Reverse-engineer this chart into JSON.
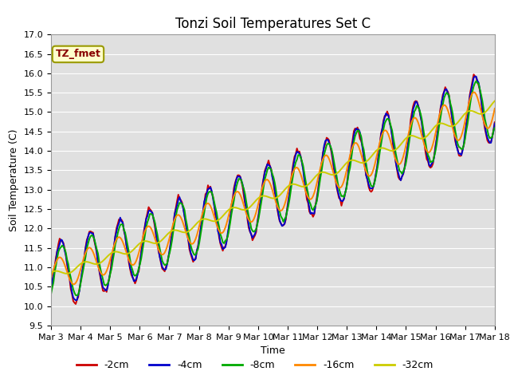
{
  "title": "Tonzi Soil Temperatures Set C",
  "xlabel": "Time",
  "ylabel": "Soil Temperature (C)",
  "ylim": [
    9.5,
    17.0
  ],
  "yticks": [
    9.5,
    10.0,
    10.5,
    11.0,
    11.5,
    12.0,
    12.5,
    13.0,
    13.5,
    14.0,
    14.5,
    15.0,
    15.5,
    16.0,
    16.5,
    17.0
  ],
  "xtick_labels": [
    "Mar 3",
    "Mar 4",
    "Mar 5",
    "Mar 6",
    "Mar 7",
    "Mar 8",
    "Mar 9",
    "Mar 10",
    "Mar 11",
    "Mar 12",
    "Mar 13",
    "Mar 14",
    "Mar 15",
    "Mar 16",
    "Mar 17",
    "Mar 18"
  ],
  "series": {
    "-2cm": {
      "color": "#cc0000",
      "linewidth": 1.4
    },
    "-4cm": {
      "color": "#0000cc",
      "linewidth": 1.4
    },
    "-8cm": {
      "color": "#00aa00",
      "linewidth": 1.4
    },
    "-16cm": {
      "color": "#ff8800",
      "linewidth": 1.4
    },
    "-32cm": {
      "color": "#cccc00",
      "linewidth": 1.4
    }
  },
  "legend_label": "TZ_fmet",
  "legend_box_facecolor": "#ffffcc",
  "legend_box_edgecolor": "#999900",
  "legend_text_color": "#880000",
  "plot_bg_color": "#e0e0e0",
  "grid_color": "#ffffff",
  "title_fontsize": 12,
  "axis_label_fontsize": 9,
  "tick_fontsize": 8
}
